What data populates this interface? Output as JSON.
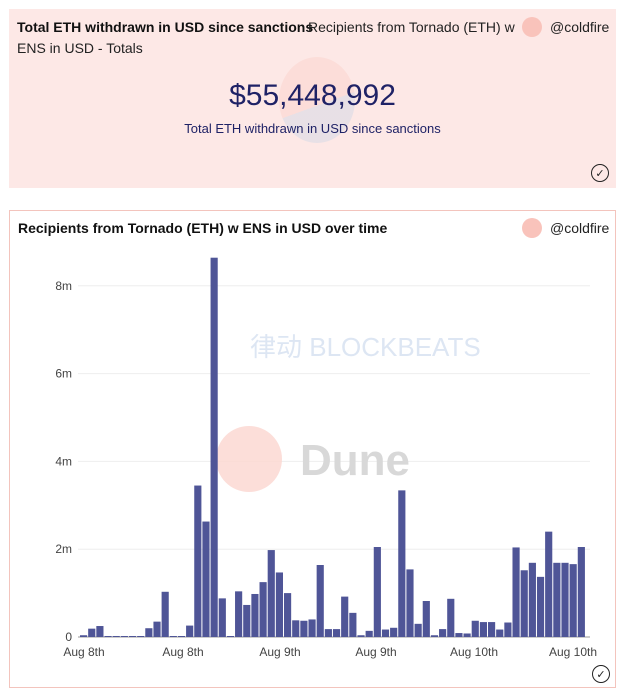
{
  "counter_card": {
    "title": "Total ETH withdrawn in USD since sanctions",
    "subtitle_line1": "Recipients from Tornado (ETH) w",
    "subtitle_line2": "ENS in USD - Totals",
    "author": "@coldfire",
    "value": "$55,448,992",
    "value_label": "Total ETH withdrawn in USD since sanctions"
  },
  "chart_card": {
    "title": "Recipients from Tornado (ETH) w ENS in USD over time",
    "author": "@coldfire",
    "watermark": "Dune",
    "overlay_watermark": "律动 BLOCKBEATS"
  },
  "colors": {
    "bar": "#4f5597",
    "card_bg": "#fde8e6",
    "value_text": "#1f2266"
  },
  "chart_data": {
    "type": "bar",
    "title": "Recipients from Tornado (ETH) w ENS in USD over time",
    "ylim": [
      0,
      8.6
    ],
    "y_unit": "m",
    "y_ticks": [
      "0",
      "2m",
      "4m",
      "6m",
      "8m"
    ],
    "y_tick_values": [
      0,
      2,
      4,
      6,
      8
    ],
    "x_tick_labels": [
      "Aug 8th",
      "Aug 8th",
      "Aug 9th",
      "Aug 9th",
      "Aug 10th",
      "Aug 10th"
    ],
    "grid": true,
    "values": [
      0.04,
      0.19,
      0.25,
      0.01,
      0.02,
      0.01,
      0.02,
      0.01,
      0.2,
      0.35,
      1.03,
      0.02,
      0.02,
      0.26,
      3.45,
      2.63,
      8.64,
      0.88,
      0.02,
      1.04,
      0.73,
      0.98,
      1.25,
      1.98,
      1.47,
      1.0,
      0.38,
      0.37,
      0.4,
      1.64,
      0.18,
      0.18,
      0.92,
      0.55,
      0.04,
      0.14,
      2.05,
      0.17,
      0.21,
      3.34,
      1.54,
      0.3,
      0.82,
      0.04,
      0.18,
      0.87,
      0.09,
      0.08,
      0.37,
      0.34,
      0.34,
      0.17,
      0.33,
      2.04,
      1.52,
      1.69,
      1.37,
      2.4,
      1.69,
      1.69,
      1.66,
      2.05
    ]
  }
}
